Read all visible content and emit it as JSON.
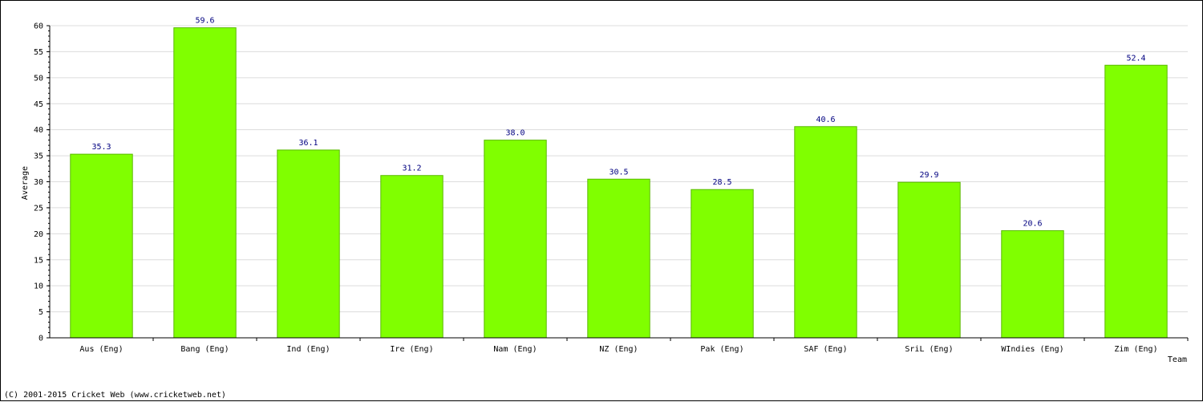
{
  "chart_data": {
    "type": "bar",
    "categories": [
      "Aus (Eng)",
      "Bang (Eng)",
      "Ind (Eng)",
      "Ire (Eng)",
      "Nam (Eng)",
      "NZ (Eng)",
      "Pak (Eng)",
      "SAF (Eng)",
      "SriL (Eng)",
      "WIndies (Eng)",
      "Zim (Eng)"
    ],
    "values": [
      35.3,
      59.6,
      36.1,
      31.2,
      38.0,
      30.5,
      28.5,
      40.6,
      29.9,
      20.6,
      52.4
    ],
    "data_labels": [
      "35.3",
      "59.6",
      "36.1",
      "31.2",
      "38.0",
      "30.5",
      "28.5",
      "40.6",
      "29.9",
      "20.6",
      "52.4"
    ],
    "xlabel": "Team",
    "ylabel": "Average",
    "ylim": [
      0,
      60
    ],
    "yticks": [
      "0",
      "5",
      "10",
      "15",
      "20",
      "25",
      "30",
      "35",
      "40",
      "45",
      "50",
      "55",
      "60"
    ],
    "grid": true,
    "legend": "none",
    "bar_color": "#80ff00",
    "label_color": "#000080"
  },
  "footer": {
    "copyright": "(C) 2001-2015 Cricket Web (www.cricketweb.net)"
  }
}
